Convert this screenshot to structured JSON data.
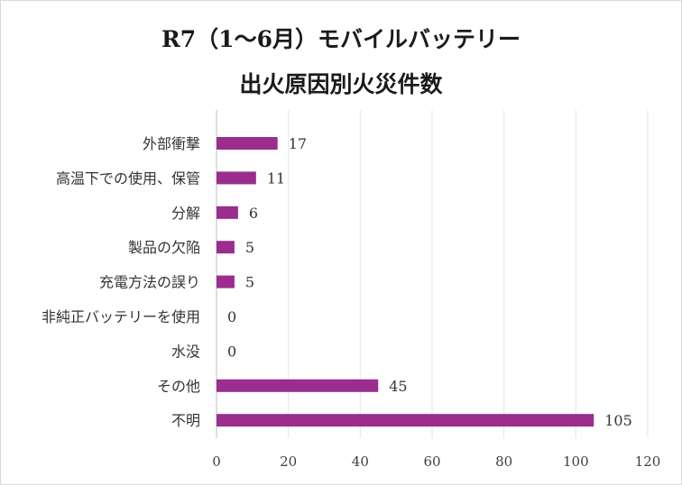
{
  "chart_data": {
    "type": "bar",
    "orientation": "horizontal",
    "title_line1": "R7（1〜6月）モバイルバッテリー",
    "title_line2": "出火原因別火災件数",
    "categories": [
      "外部衝撃",
      "高温下での使用、保管",
      "分解",
      "製品の欠陥",
      "充電方法の誤り",
      "非純正バッテリーを使用",
      "水没",
      "その他",
      "不明"
    ],
    "values": [
      17,
      11,
      6,
      5,
      5,
      0,
      0,
      45,
      105
    ],
    "xlim": [
      0,
      120
    ],
    "xticks": [
      0,
      20,
      40,
      60,
      80,
      100,
      120
    ],
    "grid": true,
    "bar_color": "#9b2d8e",
    "grid_color": "#e3e3e3"
  }
}
